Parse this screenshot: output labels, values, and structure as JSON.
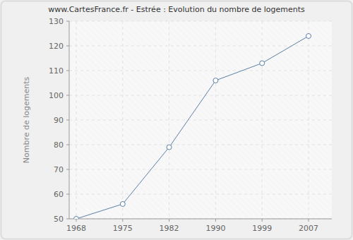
{
  "chart_data": {
    "type": "line",
    "title": "www.CartesFrance.fr - Estrée : Evolution du nombre de logements",
    "y_label": "Nombre de logements",
    "categories": [
      "1968",
      "1975",
      "1982",
      "1990",
      "1999",
      "2007"
    ],
    "values": [
      50,
      56,
      79,
      106,
      113,
      124
    ],
    "color": "#5b7fa6",
    "marker": "circle",
    "ylim": [
      50,
      130
    ],
    "yticks": [
      50,
      60,
      70,
      80,
      90,
      100,
      110,
      120,
      130
    ],
    "grid": true
  }
}
